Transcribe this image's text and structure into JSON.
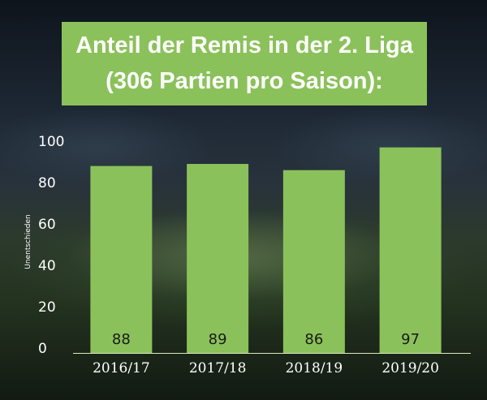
{
  "colors": {
    "bar": "#8bc15a",
    "title_bg": "#8bc15a",
    "text": "#ffffff",
    "data_label": "#1a1a1a"
  },
  "chart_data": {
    "type": "bar",
    "title": "Anteil der Remis in der 2. Liga",
    "subtitle": "(306 Partien pro Saison):",
    "xlabel": "",
    "ylabel": "Unentschieden",
    "categories": [
      "2016/17",
      "2017/18",
      "2018/19",
      "2019/20"
    ],
    "values": [
      88,
      89,
      86,
      97
    ],
    "data_labels": [
      "88",
      "89",
      "86",
      "97"
    ],
    "yticks": [
      "0",
      "20",
      "40",
      "60",
      "80",
      "100"
    ],
    "ytick_values": [
      0,
      20,
      40,
      60,
      80,
      100
    ],
    "ylim": [
      0,
      100
    ],
    "grid": false,
    "legend": "none"
  }
}
